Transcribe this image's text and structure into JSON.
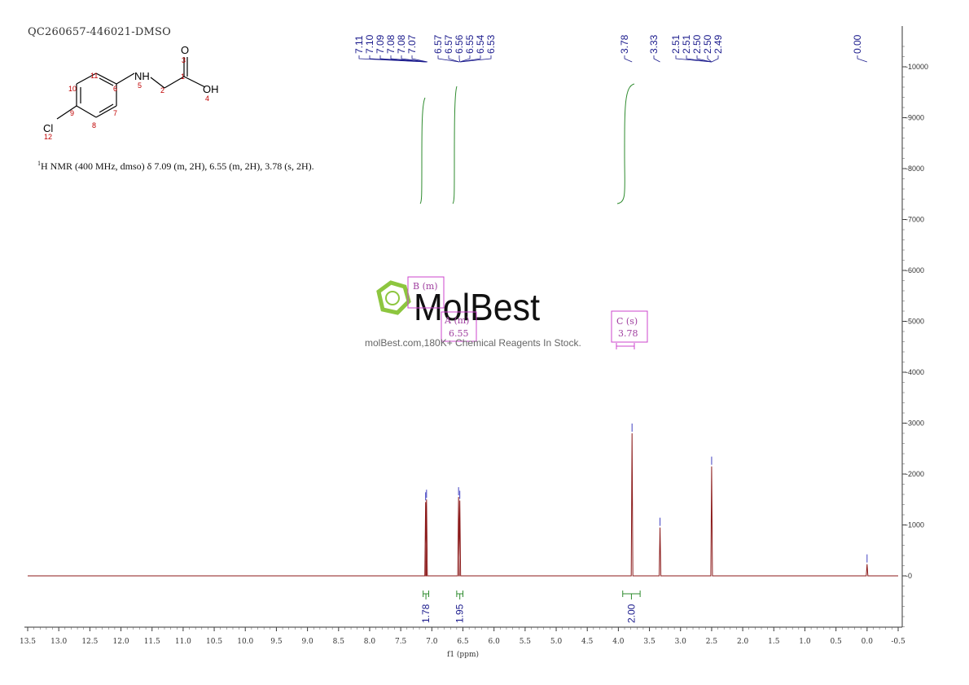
{
  "sample_id": "QC260657-446021-DMSO",
  "nmr_summary": {
    "nucleus_sup": "1",
    "text": "H NMR (400 MHz, dmso) δ 7.09 (m, 2H), 6.55 (m, 2H), 3.78 (s, 2H)."
  },
  "watermark": {
    "brand": "MolBest",
    "tagline": "molBest.com,180K+ Chemical Reagents In Stock."
  },
  "structure": {
    "atoms": [
      "NH",
      "O",
      "OH",
      "Cl"
    ],
    "numbers": [
      "1",
      "2",
      "3",
      "4",
      "5",
      "6",
      "7",
      "8",
      "9",
      "10",
      "11",
      "12"
    ]
  },
  "multiplet_boxes": [
    {
      "label": "B (m)",
      "value": ""
    },
    {
      "label": "A (m)",
      "value": "6.55"
    },
    {
      "label": "C (s)",
      "value": "3.78"
    }
  ],
  "colors": {
    "spectrum": "#8b1a1a",
    "integral": "#2e8b2e",
    "peak_label": "#1a1a8c",
    "multiplet_box": "#cc44cc",
    "watermark_green": "#8dc63f"
  },
  "chart_data": {
    "type": "line",
    "xlabel": "f1 (ppm)",
    "ylabel": "",
    "xlim": [
      13.5,
      -0.5
    ],
    "ylim": [
      -1000,
      10500
    ],
    "x_ticks": [
      "13.5",
      "13.0",
      "12.5",
      "12.0",
      "11.5",
      "11.0",
      "10.5",
      "10.0",
      "9.5",
      "9.0",
      "8.5",
      "8.0",
      "7.5",
      "7.0",
      "6.5",
      "6.0",
      "5.5",
      "5.0",
      "4.5",
      "4.0",
      "3.5",
      "3.0",
      "2.5",
      "2.0",
      "1.5",
      "1.0",
      "0.5",
      "0.0",
      "-0.5"
    ],
    "y_ticks": [
      "10000",
      "9000",
      "8000",
      "7000",
      "6000",
      "5000",
      "4000",
      "3000",
      "2000",
      "1000",
      "0"
    ],
    "peak_labels": [
      "7.11",
      "7.10",
      "7.09",
      "7.08",
      "7.08",
      "7.07",
      "6.57",
      "6.57",
      "6.56",
      "6.55",
      "6.54",
      "6.53",
      "3.78",
      "3.33",
      "2.51",
      "2.51",
      "2.50",
      "2.50",
      "2.49",
      "0.00"
    ],
    "peaks": [
      {
        "ppm": 7.1,
        "height": 1450
      },
      {
        "ppm": 7.085,
        "height": 1500
      },
      {
        "ppm": 6.57,
        "height": 1550
      },
      {
        "ppm": 6.55,
        "height": 1480
      },
      {
        "ppm": 3.78,
        "height": 2800
      },
      {
        "ppm": 3.33,
        "height": 950
      },
      {
        "ppm": 2.5,
        "height": 2150
      },
      {
        "ppm": 0.0,
        "height": 230
      }
    ],
    "integrals": [
      {
        "from": 7.14,
        "to": 7.05,
        "value": "1.78"
      },
      {
        "from": 6.6,
        "to": 6.5,
        "value": "1.95"
      },
      {
        "from": 3.93,
        "to": 3.65,
        "value": "2.00"
      }
    ]
  }
}
